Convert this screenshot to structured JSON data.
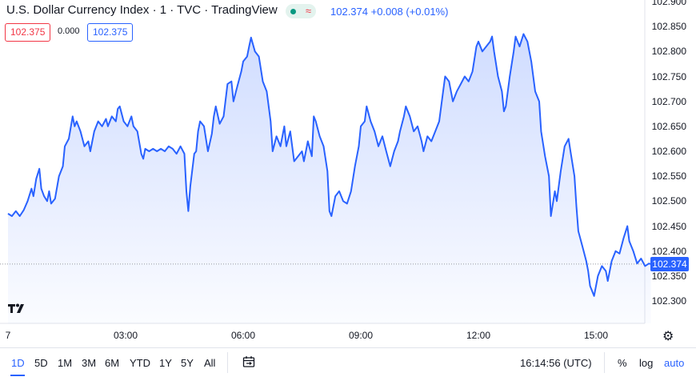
{
  "header": {
    "title": "U.S. Dollar Currency Index · 1 · TVC · TradingView",
    "status_wave": "≈",
    "price_line": "102.374 +0.008 (+0.01%)",
    "bid": "102.375",
    "spread": "0.000",
    "ask": "102.375"
  },
  "chart_data": {
    "type": "area",
    "y_ticks": [
      "102.900",
      "102.850",
      "102.800",
      "102.750",
      "102.700",
      "102.650",
      "102.600",
      "102.550",
      "102.500",
      "102.450",
      "102.400",
      "102.350",
      "102.300"
    ],
    "ylim": [
      102.29,
      102.905
    ],
    "x_ticks": [
      {
        "label": "7",
        "t": 0
      },
      {
        "label": "03:00",
        "t": 3
      },
      {
        "label": "06:00",
        "t": 6
      },
      {
        "label": "09:00",
        "t": 9
      },
      {
        "label": "12:00",
        "t": 12
      },
      {
        "label": "15:00",
        "t": 15
      }
    ],
    "last_price": "102.374",
    "line_color": "#2962ff",
    "series": [
      {
        "values": [
          [
            0.0,
            102.475
          ],
          [
            0.1,
            102.47
          ],
          [
            0.2,
            102.48
          ],
          [
            0.3,
            102.47
          ],
          [
            0.4,
            102.482
          ],
          [
            0.5,
            102.5
          ],
          [
            0.6,
            102.525
          ],
          [
            0.65,
            102.51
          ],
          [
            0.72,
            102.545
          ],
          [
            0.8,
            102.565
          ],
          [
            0.85,
            102.525
          ],
          [
            0.92,
            102.51
          ],
          [
            1.0,
            102.5
          ],
          [
            1.05,
            102.52
          ],
          [
            1.1,
            102.495
          ],
          [
            1.2,
            102.505
          ],
          [
            1.3,
            102.55
          ],
          [
            1.4,
            102.57
          ],
          [
            1.45,
            102.61
          ],
          [
            1.55,
            102.625
          ],
          [
            1.65,
            102.67
          ],
          [
            1.7,
            102.65
          ],
          [
            1.75,
            102.66
          ],
          [
            1.85,
            102.64
          ],
          [
            1.95,
            102.61
          ],
          [
            2.05,
            102.62
          ],
          [
            2.1,
            102.6
          ],
          [
            2.2,
            102.64
          ],
          [
            2.3,
            102.66
          ],
          [
            2.4,
            102.65
          ],
          [
            2.5,
            102.665
          ],
          [
            2.55,
            102.65
          ],
          [
            2.65,
            102.67
          ],
          [
            2.75,
            102.66
          ],
          [
            2.8,
            102.685
          ],
          [
            2.85,
            102.69
          ],
          [
            2.95,
            102.66
          ],
          [
            3.05,
            102.65
          ],
          [
            3.15,
            102.67
          ],
          [
            3.2,
            102.65
          ],
          [
            3.3,
            102.64
          ],
          [
            3.4,
            102.595
          ],
          [
            3.45,
            102.585
          ],
          [
            3.5,
            102.605
          ],
          [
            3.6,
            102.6
          ],
          [
            3.7,
            102.605
          ],
          [
            3.8,
            102.6
          ],
          [
            3.9,
            102.605
          ],
          [
            4.0,
            102.6
          ],
          [
            4.1,
            102.61
          ],
          [
            4.2,
            102.605
          ],
          [
            4.3,
            102.595
          ],
          [
            4.4,
            102.61
          ],
          [
            4.5,
            102.595
          ],
          [
            4.55,
            102.52
          ],
          [
            4.6,
            102.48
          ],
          [
            4.65,
            102.53
          ],
          [
            4.75,
            102.595
          ],
          [
            4.8,
            102.6
          ],
          [
            4.85,
            102.64
          ],
          [
            4.9,
            102.66
          ],
          [
            5.0,
            102.65
          ],
          [
            5.1,
            102.6
          ],
          [
            5.2,
            102.635
          ],
          [
            5.25,
            102.67
          ],
          [
            5.3,
            102.69
          ],
          [
            5.4,
            102.655
          ],
          [
            5.5,
            102.67
          ],
          [
            5.6,
            102.735
          ],
          [
            5.7,
            102.74
          ],
          [
            5.75,
            102.7
          ],
          [
            5.85,
            102.73
          ],
          [
            5.95,
            102.76
          ],
          [
            6.0,
            102.78
          ],
          [
            6.1,
            102.79
          ],
          [
            6.15,
            102.81
          ],
          [
            6.2,
            102.828
          ],
          [
            6.3,
            102.8
          ],
          [
            6.4,
            102.79
          ],
          [
            6.5,
            102.74
          ],
          [
            6.6,
            102.72
          ],
          [
            6.7,
            102.66
          ],
          [
            6.75,
            102.6
          ],
          [
            6.85,
            102.63
          ],
          [
            6.95,
            102.61
          ],
          [
            7.05,
            102.65
          ],
          [
            7.1,
            102.61
          ],
          [
            7.2,
            102.64
          ],
          [
            7.3,
            102.58
          ],
          [
            7.4,
            102.59
          ],
          [
            7.5,
            102.6
          ],
          [
            7.55,
            102.58
          ],
          [
            7.65,
            102.62
          ],
          [
            7.75,
            102.59
          ],
          [
            7.8,
            102.67
          ],
          [
            7.85,
            102.66
          ],
          [
            7.95,
            102.63
          ],
          [
            8.05,
            102.61
          ],
          [
            8.15,
            102.56
          ],
          [
            8.2,
            102.48
          ],
          [
            8.25,
            102.47
          ],
          [
            8.35,
            102.51
          ],
          [
            8.45,
            102.52
          ],
          [
            8.55,
            102.5
          ],
          [
            8.65,
            102.495
          ],
          [
            8.75,
            102.52
          ],
          [
            8.85,
            102.57
          ],
          [
            8.95,
            102.61
          ],
          [
            9.0,
            102.65
          ],
          [
            9.1,
            102.66
          ],
          [
            9.15,
            102.69
          ],
          [
            9.25,
            102.66
          ],
          [
            9.35,
            102.64
          ],
          [
            9.45,
            102.61
          ],
          [
            9.55,
            102.63
          ],
          [
            9.65,
            102.6
          ],
          [
            9.75,
            102.57
          ],
          [
            9.85,
            102.6
          ],
          [
            9.95,
            102.62
          ],
          [
            10.0,
            102.64
          ],
          [
            10.1,
            102.67
          ],
          [
            10.15,
            102.69
          ],
          [
            10.25,
            102.67
          ],
          [
            10.35,
            102.64
          ],
          [
            10.45,
            102.65
          ],
          [
            10.55,
            102.62
          ],
          [
            10.6,
            102.6
          ],
          [
            10.7,
            102.63
          ],
          [
            10.8,
            102.62
          ],
          [
            10.9,
            102.64
          ],
          [
            11.0,
            102.66
          ],
          [
            11.1,
            102.72
          ],
          [
            11.15,
            102.75
          ],
          [
            11.25,
            102.74
          ],
          [
            11.35,
            102.7
          ],
          [
            11.45,
            102.72
          ],
          [
            11.55,
            102.735
          ],
          [
            11.65,
            102.75
          ],
          [
            11.75,
            102.74
          ],
          [
            11.85,
            102.76
          ],
          [
            11.95,
            102.81
          ],
          [
            12.0,
            102.82
          ],
          [
            12.1,
            102.8
          ],
          [
            12.2,
            102.81
          ],
          [
            12.3,
            102.82
          ],
          [
            12.35,
            102.83
          ],
          [
            12.4,
            102.8
          ],
          [
            12.5,
            102.75
          ],
          [
            12.6,
            102.72
          ],
          [
            12.65,
            102.68
          ],
          [
            12.7,
            102.69
          ],
          [
            12.8,
            102.75
          ],
          [
            12.9,
            102.8
          ],
          [
            12.95,
            102.83
          ],
          [
            13.05,
            102.81
          ],
          [
            13.15,
            102.835
          ],
          [
            13.25,
            102.82
          ],
          [
            13.35,
            102.78
          ],
          [
            13.45,
            102.72
          ],
          [
            13.55,
            102.7
          ],
          [
            13.6,
            102.64
          ],
          [
            13.7,
            102.59
          ],
          [
            13.8,
            102.55
          ],
          [
            13.85,
            102.47
          ],
          [
            13.95,
            102.52
          ],
          [
            14.0,
            102.5
          ],
          [
            14.1,
            102.56
          ],
          [
            14.2,
            102.61
          ],
          [
            14.3,
            102.625
          ],
          [
            14.35,
            102.6
          ],
          [
            14.45,
            102.55
          ],
          [
            14.5,
            102.49
          ],
          [
            14.55,
            102.44
          ],
          [
            14.65,
            102.41
          ],
          [
            14.75,
            102.38
          ],
          [
            14.8,
            102.36
          ],
          [
            14.85,
            102.33
          ],
          [
            14.95,
            102.31
          ],
          [
            15.05,
            102.35
          ],
          [
            15.15,
            102.37
          ],
          [
            15.25,
            102.36
          ],
          [
            15.3,
            102.34
          ],
          [
            15.4,
            102.38
          ],
          [
            15.5,
            102.4
          ],
          [
            15.6,
            102.395
          ],
          [
            15.7,
            102.425
          ],
          [
            15.8,
            102.45
          ],
          [
            15.85,
            102.42
          ],
          [
            15.95,
            102.4
          ],
          [
            16.05,
            102.375
          ],
          [
            16.15,
            102.385
          ],
          [
            16.25,
            102.37
          ],
          [
            16.35,
            102.375
          ],
          [
            16.4,
            102.374
          ]
        ]
      }
    ]
  },
  "bottom_bar": {
    "ranges": [
      "1D",
      "5D",
      "1M",
      "3M",
      "6M",
      "YTD",
      "1Y",
      "5Y",
      "All"
    ],
    "active_range": "1D",
    "clock": "16:14:56 (UTC)",
    "percent": "%",
    "log": "log",
    "auto": "auto"
  },
  "icons": {
    "logo": "tradingview-logo-icon",
    "settings": "gear-icon",
    "date_range": "calendar-icon"
  }
}
